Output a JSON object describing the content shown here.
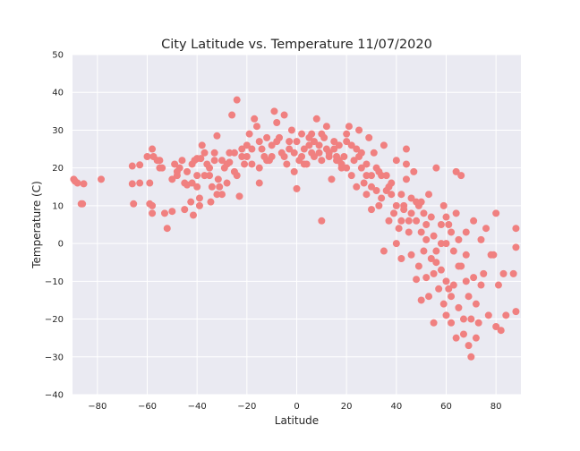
{
  "chart_data": {
    "type": "scatter",
    "title": "City Latitude vs. Temperature 11/07/2020",
    "xlabel": "Latitude",
    "ylabel": "Temperature (C)",
    "xlim": [
      -90,
      90
    ],
    "ylim": [
      -40,
      50
    ],
    "xticks": [
      -80,
      -60,
      -40,
      -20,
      0,
      20,
      40,
      60,
      80
    ],
    "yticks": [
      -40,
      -30,
      -20,
      -10,
      0,
      10,
      20,
      30,
      40,
      50
    ],
    "grid": true,
    "background_color": "#eaeaf2",
    "grid_color": "#ffffff",
    "point_color": "#f08080",
    "series": [
      {
        "name": "cities",
        "points": [
          [
            -89.5,
            17
          ],
          [
            -89,
            16.5
          ],
          [
            -88,
            16
          ],
          [
            -86.5,
            10.5
          ],
          [
            -86,
            10.5
          ],
          [
            -85.5,
            15.8
          ],
          [
            -78.5,
            17
          ],
          [
            -66,
            20.5
          ],
          [
            -66,
            15.8
          ],
          [
            -65.5,
            10.5
          ],
          [
            -63,
            20.8
          ],
          [
            -63,
            16
          ],
          [
            -59,
            16
          ],
          [
            -59,
            10.5
          ],
          [
            -58,
            8
          ],
          [
            -58,
            25
          ],
          [
            -57.5,
            23
          ],
          [
            -56,
            22
          ],
          [
            -55,
            22
          ],
          [
            -54,
            20
          ],
          [
            -53,
            8
          ],
          [
            -52,
            4
          ],
          [
            -50,
            8.5
          ],
          [
            -49,
            21
          ],
          [
            -48,
            19
          ],
          [
            -47,
            20
          ],
          [
            -46,
            22
          ],
          [
            -45,
            9
          ],
          [
            -44,
            15.5
          ],
          [
            -44,
            19
          ],
          [
            -42.5,
            11
          ],
          [
            -42,
            16
          ],
          [
            -41.5,
            7.5
          ],
          [
            -41,
            22
          ],
          [
            -40,
            22.5
          ],
          [
            -40,
            15
          ],
          [
            -39,
            10
          ],
          [
            -39,
            12
          ],
          [
            -38.5,
            22.5
          ],
          [
            -38,
            26
          ],
          [
            -37,
            24
          ],
          [
            -36,
            21
          ],
          [
            -35,
            18
          ],
          [
            -34.5,
            11
          ],
          [
            -34,
            15
          ],
          [
            -33,
            22
          ],
          [
            -33,
            24
          ],
          [
            -32,
            28.5
          ],
          [
            -31.5,
            17
          ],
          [
            -31,
            15
          ],
          [
            -30,
            13
          ],
          [
            -29,
            20
          ],
          [
            -28,
            21
          ],
          [
            -27,
            21.5
          ],
          [
            -26,
            34
          ],
          [
            -25,
            24
          ],
          [
            -24,
            18
          ],
          [
            -24,
            38
          ],
          [
            -23,
            12.5
          ],
          [
            -22,
            25
          ],
          [
            -21,
            21
          ],
          [
            -20,
            23
          ],
          [
            -19,
            29
          ],
          [
            -18,
            25
          ],
          [
            -17,
            33
          ],
          [
            -16,
            31
          ],
          [
            -15,
            20
          ],
          [
            -15,
            16
          ],
          [
            -14,
            25
          ],
          [
            -13,
            23
          ],
          [
            -12,
            28
          ],
          [
            -11,
            22
          ],
          [
            -10,
            26
          ],
          [
            -9,
            35
          ],
          [
            -8,
            32
          ],
          [
            -7,
            28
          ],
          [
            -6,
            24
          ],
          [
            -5,
            34
          ],
          [
            -4,
            21
          ],
          [
            -3,
            25
          ],
          [
            -2,
            30
          ],
          [
            -1,
            19
          ],
          [
            0,
            27
          ],
          [
            0,
            14.5
          ],
          [
            1,
            22
          ],
          [
            2,
            29
          ],
          [
            3,
            25
          ],
          [
            4,
            21
          ],
          [
            5,
            28
          ],
          [
            6,
            24
          ],
          [
            7,
            23
          ],
          [
            8,
            33
          ],
          [
            9,
            26
          ],
          [
            10,
            22
          ],
          [
            10,
            6
          ],
          [
            11,
            28
          ],
          [
            12,
            31
          ],
          [
            13,
            24
          ],
          [
            14,
            17
          ],
          [
            15,
            27
          ],
          [
            16,
            22
          ],
          [
            17,
            26
          ],
          [
            18,
            20
          ],
          [
            19,
            23
          ],
          [
            20,
            29
          ],
          [
            21,
            31
          ],
          [
            22,
            18
          ],
          [
            23,
            22
          ],
          [
            24,
            25
          ],
          [
            25,
            30
          ],
          [
            26,
            20
          ],
          [
            27,
            16
          ],
          [
            28,
            21
          ],
          [
            29,
            28
          ],
          [
            30,
            18
          ],
          [
            30,
            9
          ],
          [
            31,
            24
          ],
          [
            32,
            14
          ],
          [
            33,
            19
          ],
          [
            34,
            12
          ],
          [
            35,
            26
          ],
          [
            35,
            -2
          ],
          [
            36,
            18
          ],
          [
            37,
            15
          ],
          [
            38,
            13
          ],
          [
            39,
            8
          ],
          [
            40,
            22
          ],
          [
            40,
            0
          ],
          [
            41,
            4
          ],
          [
            42,
            13
          ],
          [
            42,
            -4
          ],
          [
            43,
            9
          ],
          [
            44,
            25
          ],
          [
            44,
            21
          ],
          [
            45,
            3
          ],
          [
            46,
            12
          ],
          [
            46,
            -3
          ],
          [
            47,
            19
          ],
          [
            48,
            6
          ],
          [
            48,
            -9.5
          ],
          [
            49,
            10
          ],
          [
            49,
            -6
          ],
          [
            50,
            11
          ],
          [
            50,
            -15
          ],
          [
            51,
            8
          ],
          [
            51,
            -2
          ],
          [
            52,
            5
          ],
          [
            52,
            -9
          ],
          [
            53,
            13
          ],
          [
            53,
            -14
          ],
          [
            54,
            7
          ],
          [
            54,
            -4
          ],
          [
            55,
            2
          ],
          [
            55,
            -21
          ],
          [
            56,
            20
          ],
          [
            56,
            -2
          ],
          [
            57,
            -12
          ],
          [
            58,
            5
          ],
          [
            58,
            -7
          ],
          [
            59,
            10
          ],
          [
            59,
            -16
          ],
          [
            60,
            0
          ],
          [
            60,
            -19
          ],
          [
            61,
            -12
          ],
          [
            61,
            5
          ],
          [
            62,
            3
          ],
          [
            62,
            -21
          ],
          [
            63,
            -2
          ],
          [
            63,
            -11
          ],
          [
            64,
            8
          ],
          [
            64,
            19
          ],
          [
            64,
            -25
          ],
          [
            65,
            1
          ],
          [
            65,
            -17
          ],
          [
            66,
            -6
          ],
          [
            66,
            18
          ],
          [
            67,
            -20
          ],
          [
            67,
            -24
          ],
          [
            68,
            -10
          ],
          [
            68,
            3
          ],
          [
            69,
            -27
          ],
          [
            69,
            -14
          ],
          [
            70,
            -30
          ],
          [
            70,
            -20
          ],
          [
            71,
            6
          ],
          [
            71,
            -9
          ],
          [
            72,
            -25
          ],
          [
            72,
            -16
          ],
          [
            73,
            -21
          ],
          [
            74,
            1
          ],
          [
            74,
            -11
          ],
          [
            75,
            -8
          ],
          [
            76,
            4
          ],
          [
            77,
            -19
          ],
          [
            78,
            -3
          ],
          [
            79,
            -3
          ],
          [
            80,
            -22
          ],
          [
            80,
            8
          ],
          [
            81,
            -11
          ],
          [
            82,
            -23
          ],
          [
            83,
            -8
          ],
          [
            84,
            -19
          ],
          [
            87,
            -8
          ],
          [
            88,
            -18
          ],
          [
            88,
            4
          ],
          [
            88,
            -1
          ],
          [
            20,
            27
          ],
          [
            15,
            25
          ],
          [
            10,
            29
          ],
          [
            5,
            26
          ],
          [
            25,
            23
          ],
          [
            -5,
            23
          ],
          [
            28,
            18
          ],
          [
            32,
            20
          ],
          [
            38,
            16
          ],
          [
            42,
            6
          ],
          [
            46,
            8
          ],
          [
            52,
            1
          ],
          [
            56,
            -5
          ],
          [
            58,
            0
          ],
          [
            60,
            7
          ],
          [
            48,
            11
          ],
          [
            44,
            17
          ],
          [
            36,
            14
          ],
          [
            24,
            15
          ],
          [
            18,
            21
          ],
          [
            -10,
            23
          ],
          [
            -20,
            26
          ],
          [
            -25,
            19
          ],
          [
            -30,
            22
          ],
          [
            -35,
            20
          ],
          [
            -40,
            18
          ],
          [
            -45,
            16
          ],
          [
            -48,
            18
          ],
          [
            -55,
            20
          ],
          [
            30,
            15
          ],
          [
            34,
            18
          ],
          [
            40,
            10
          ],
          [
            45,
            6
          ],
          [
            50,
            3
          ],
          [
            55,
            -8
          ],
          [
            60,
            -10
          ],
          [
            62,
            -14
          ],
          [
            65,
            -6
          ],
          [
            68,
            -3
          ],
          [
            2,
            23
          ],
          [
            6,
            29
          ],
          [
            12,
            25
          ],
          [
            16,
            23
          ],
          [
            20,
            20
          ],
          [
            22,
            26
          ],
          [
            26,
            24
          ],
          [
            28,
            13
          ],
          [
            33,
            10
          ],
          [
            37,
            6
          ],
          [
            43,
            10
          ],
          [
            -15,
            27
          ],
          [
            -12,
            22
          ],
          [
            -8,
            27
          ],
          [
            -3,
            27
          ],
          [
            -1,
            24
          ],
          [
            3,
            21
          ],
          [
            7,
            27
          ],
          [
            9,
            24
          ],
          [
            13,
            23
          ],
          [
            17,
            22
          ],
          [
            -18,
            21
          ],
          [
            -22,
            23
          ],
          [
            -27,
            24
          ],
          [
            -28,
            16
          ],
          [
            -32,
            13
          ],
          [
            -37,
            18
          ],
          [
            -42,
            21
          ],
          [
            -50,
            17
          ],
          [
            -60,
            23
          ],
          [
            -58,
            10
          ]
        ]
      }
    ]
  }
}
